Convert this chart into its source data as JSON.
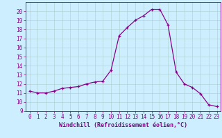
{
  "x": [
    0,
    1,
    2,
    3,
    4,
    5,
    6,
    7,
    8,
    9,
    10,
    11,
    12,
    13,
    14,
    15,
    16,
    17,
    18,
    19,
    20,
    21,
    22,
    23
  ],
  "y": [
    11.2,
    11.0,
    11.0,
    11.2,
    11.5,
    11.6,
    11.7,
    12.0,
    12.2,
    12.3,
    13.5,
    17.3,
    18.2,
    19.0,
    19.5,
    20.2,
    20.2,
    18.5,
    13.3,
    12.0,
    11.6,
    10.9,
    9.7,
    9.5
  ],
  "xlabel": "Windchill (Refroidissement éolien,°C)",
  "line_color": "#880088",
  "marker": "+",
  "background_color": "#cceeff",
  "grid_color": "#aacccc",
  "ylim": [
    9,
    21
  ],
  "xlim": [
    -0.5,
    23.5
  ],
  "yticks": [
    9,
    10,
    11,
    12,
    13,
    14,
    15,
    16,
    17,
    18,
    19,
    20
  ],
  "xticks": [
    0,
    1,
    2,
    3,
    4,
    5,
    6,
    7,
    8,
    9,
    10,
    11,
    12,
    13,
    14,
    15,
    16,
    17,
    18,
    19,
    20,
    21,
    22,
    23
  ],
  "tick_fontsize": 5.5,
  "xlabel_fontsize": 6.0,
  "marker_size": 3.5,
  "line_width": 0.9
}
